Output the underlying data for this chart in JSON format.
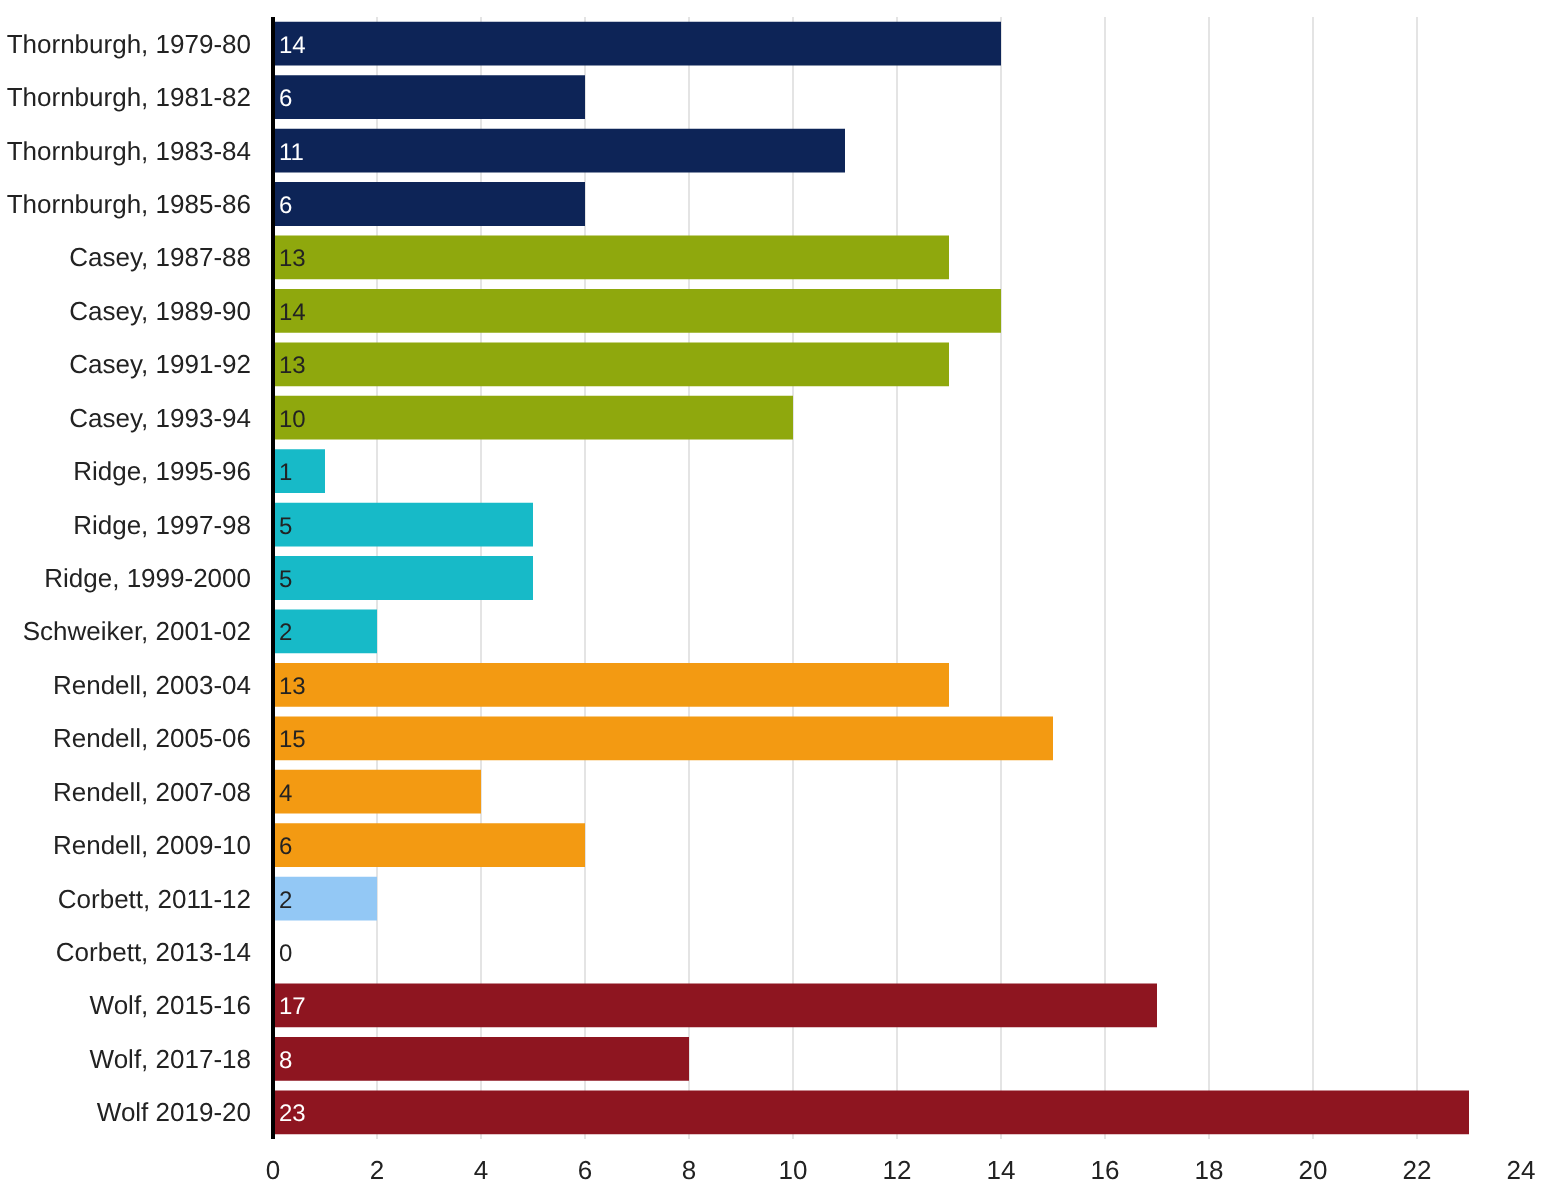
{
  "chart_data": {
    "type": "bar",
    "orientation": "horizontal",
    "categories": [
      "Thornburgh, 1979-80",
      "Thornburgh, 1981-82",
      "Thornburgh, 1983-84",
      "Thornburgh, 1985-86",
      "Casey, 1987-88",
      "Casey, 1989-90",
      "Casey, 1991-92",
      "Casey, 1993-94",
      "Ridge, 1995-96",
      "Ridge, 1997-98",
      "Ridge, 1999-2000",
      "Schweiker, 2001-02",
      "Rendell, 2003-04",
      "Rendell, 2005-06",
      "Rendell, 2007-08",
      "Rendell, 2009-10",
      "Corbett, 2011-12",
      "Corbett, 2013-14",
      "Wolf, 2015-16",
      "Wolf, 2017-18",
      "Wolf 2019-20"
    ],
    "values": [
      14,
      6,
      11,
      6,
      13,
      14,
      13,
      10,
      1,
      5,
      5,
      2,
      13,
      15,
      4,
      6,
      2,
      0,
      17,
      8,
      23
    ],
    "colors": [
      "#0d2457",
      "#0d2457",
      "#0d2457",
      "#0d2457",
      "#8fa80d",
      "#8fa80d",
      "#8fa80d",
      "#8fa80d",
      "#17bac8",
      "#17bac8",
      "#17bac8",
      "#17bac8",
      "#f39a12",
      "#f39a12",
      "#f39a12",
      "#f39a12",
      "#93c8f5",
      "#93c8f5",
      "#8e1520",
      "#8e1520",
      "#8e1520"
    ],
    "xlim": [
      0,
      24
    ],
    "xticks": [
      0,
      2,
      4,
      6,
      8,
      10,
      12,
      14,
      16,
      18,
      20,
      22,
      24
    ],
    "grid": "x",
    "data_labels": true
  }
}
